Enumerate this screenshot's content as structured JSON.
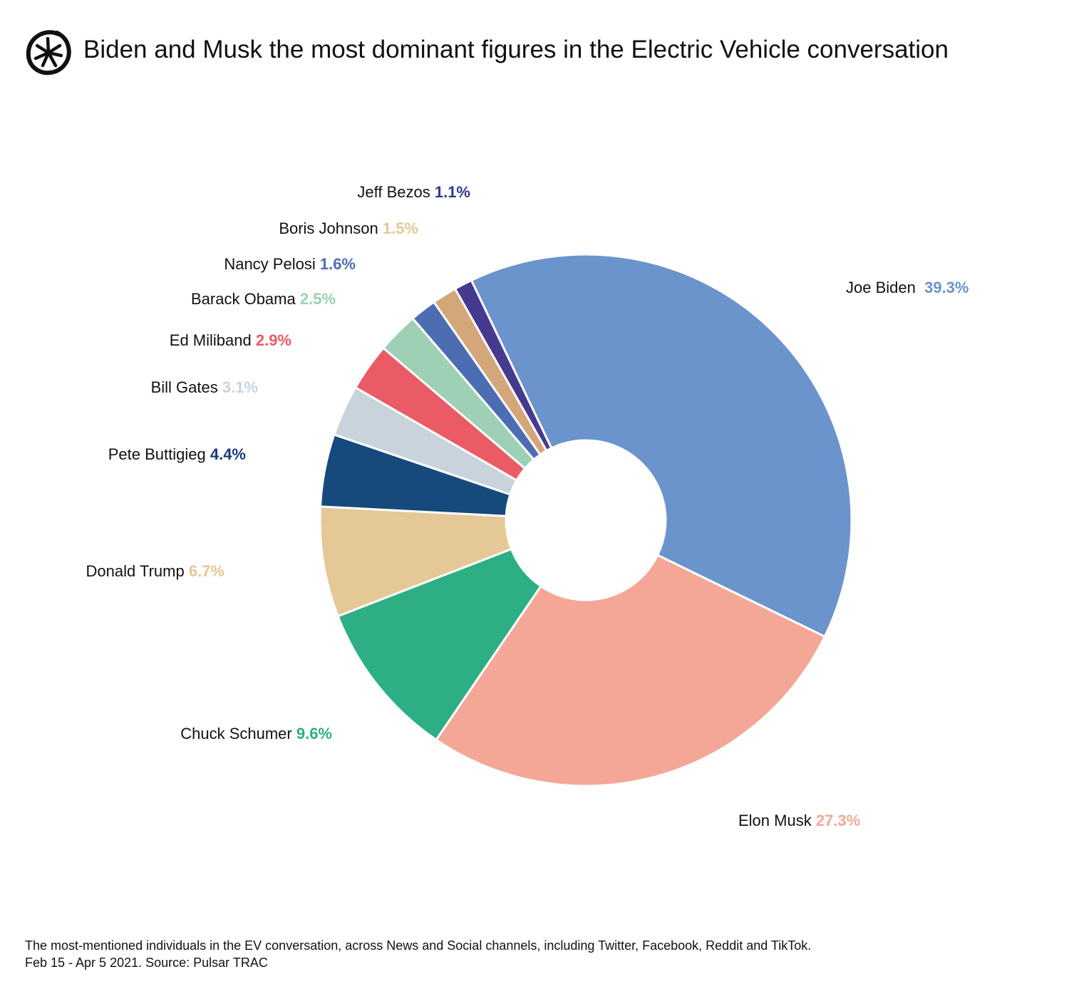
{
  "title": "Biden and Musk the most dominant figures in the Electric Vehicle conversation",
  "logo": "Pulsar asterisk-in-circle logo",
  "footer": {
    "line1": "The most-mentioned individuals in the EV conversation, across News and Social channels, including Twitter, Facebook, Reddit and TikTok.",
    "line2": "Feb 15 - Apr 5 2021. Source: Pulsar TRAC"
  },
  "chart_data": {
    "type": "pie",
    "variant": "donut",
    "title": "Biden and Musk the most dominant figures in the Electric Vehicle conversation",
    "unit": "%",
    "categories": [
      "Joe Biden",
      "Elon Musk",
      "Chuck Schumer",
      "Donald Trump",
      "Pete Buttigieg",
      "Bill Gates",
      "Ed Miliband",
      "Barack Obama",
      "Nancy Pelosi",
      "Boris Johnson",
      "Jeff Bezos"
    ],
    "values": [
      39.3,
      27.3,
      9.6,
      6.7,
      4.4,
      3.1,
      2.9,
      2.5,
      1.6,
      1.5,
      1.1
    ],
    "labels": [
      "39.3%",
      "27.3%",
      "9.6%",
      "6.7%",
      "4.4%",
      "3.1%",
      "2.9%",
      "2.5%",
      "1.6%",
      "1.5%",
      "1.1%"
    ],
    "colors": [
      "#6b93cc",
      "#f4a797",
      "#2eae84",
      "#e4c896",
      "#174a7c",
      "#c8d3dc",
      "#ea5b65",
      "#9dd0b5",
      "#4d6db3",
      "#d4a77a",
      "#463a8f"
    ],
    "label_colors": [
      "#6b93cc",
      "#f4a797",
      "#2eae84",
      "#e4c896",
      "#1a3a7a",
      "#c8d3dc",
      "#ea5b65",
      "#9dd0b5",
      "#4d6db3",
      "#e4c896",
      "#2e3a8f"
    ],
    "legend": "none (direct labels)"
  }
}
